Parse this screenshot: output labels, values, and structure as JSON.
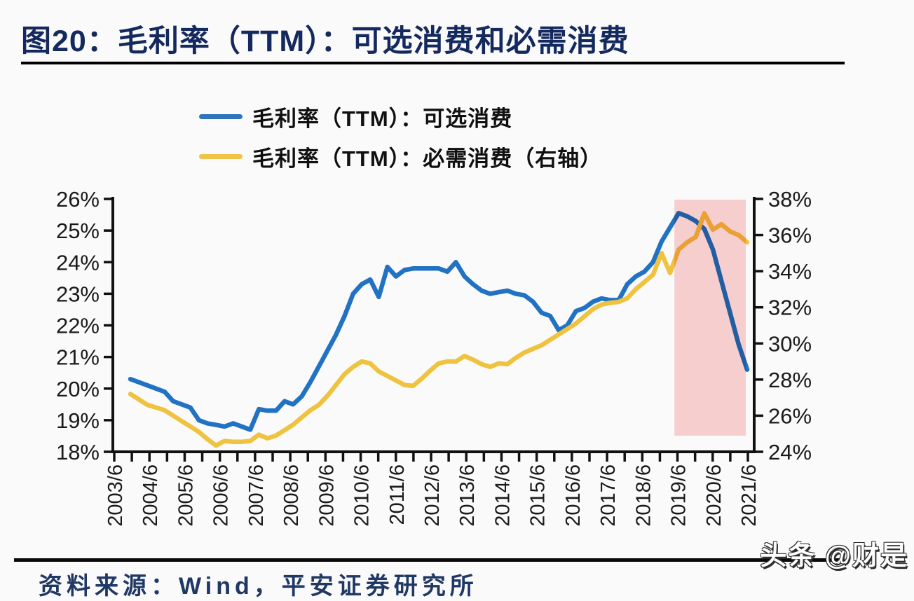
{
  "page": {
    "title": "图20：毛利率（TTM）：可选消费和必需消费",
    "watermark": "头条 @财是",
    "source_note_partial": "资料来源：Wind，平安证券研究所"
  },
  "legend": [
    {
      "label": "毛利率（TTM）：可选消费",
      "color": "#2E75BC"
    },
    {
      "label": "毛利率（TTM）：必需消费（右轴）",
      "color": "#F0C24A"
    }
  ],
  "colors": {
    "title": "#14295E",
    "axis": "#111111",
    "tick_label": "#1a1a1a",
    "blue_line": "#2272C4",
    "yellow_line": "#EFC240",
    "highlight": "#FAD2D2",
    "background": "#FBFAFB"
  },
  "chart_data": {
    "type": "line",
    "title": "毛利率（TTM）：可选消费和必需消费",
    "x_tick_labels": [
      "2003/6",
      "2004/6",
      "2005/6",
      "2006/6",
      "2007/6",
      "2008/6",
      "2009/6",
      "2010/6",
      "2011/6",
      "2012/6",
      "2013/6",
      "2014/6",
      "2015/6",
      "2016/6",
      "2017/6",
      "2018/6",
      "2019/6",
      "2020/6",
      "2021/6"
    ],
    "dates": [
      "2003/6",
      "2003/9",
      "2003/12",
      "2004/3",
      "2004/6",
      "2004/9",
      "2004/12",
      "2005/3",
      "2005/6",
      "2005/9",
      "2005/12",
      "2006/3",
      "2006/6",
      "2006/9",
      "2006/12",
      "2007/3",
      "2007/6",
      "2007/9",
      "2007/12",
      "2008/3",
      "2008/6",
      "2008/9",
      "2008/12",
      "2009/3",
      "2009/6",
      "2009/9",
      "2009/12",
      "2010/3",
      "2010/6",
      "2010/9",
      "2010/12",
      "2011/3",
      "2011/6",
      "2011/9",
      "2011/12",
      "2012/3",
      "2012/6",
      "2012/9",
      "2012/12",
      "2013/3",
      "2013/6",
      "2013/9",
      "2013/12",
      "2014/3",
      "2014/6",
      "2014/9",
      "2014/12",
      "2015/3",
      "2015/6",
      "2015/9",
      "2015/12",
      "2016/3",
      "2016/6",
      "2016/9",
      "2016/12",
      "2017/3",
      "2017/6",
      "2017/9",
      "2017/12",
      "2018/3",
      "2018/6",
      "2018/9",
      "2018/12",
      "2019/3",
      "2019/6",
      "2019/9",
      "2019/12",
      "2020/3",
      "2020/6",
      "2020/9",
      "2020/12",
      "2021/3",
      "2021/6"
    ],
    "series": [
      {
        "name": "毛利率（TTM）：可选消费",
        "axis": "left",
        "color": "#2272C4",
        "values": [
          20.3,
          20.2,
          20.1,
          20.0,
          19.9,
          19.6,
          19.5,
          19.4,
          19.0,
          18.9,
          18.85,
          18.8,
          18.9,
          18.8,
          18.7,
          19.35,
          19.3,
          19.3,
          19.6,
          19.5,
          19.75,
          20.2,
          20.7,
          21.2,
          21.7,
          22.3,
          23.0,
          23.3,
          23.45,
          22.9,
          23.85,
          23.55,
          23.75,
          23.8,
          23.8,
          23.8,
          23.8,
          23.7,
          24.0,
          23.55,
          23.3,
          23.1,
          23.0,
          23.05,
          23.1,
          23.0,
          22.95,
          22.75,
          22.4,
          22.3,
          21.85,
          22.0,
          22.45,
          22.55,
          22.75,
          22.85,
          22.8,
          22.8,
          23.3,
          23.55,
          23.7,
          24.0,
          24.65,
          25.1,
          25.55,
          25.45,
          25.3,
          25.05,
          24.4,
          23.4,
          22.4,
          21.4,
          20.6
        ]
      },
      {
        "name": "毛利率（TTM）：必需消费（右轴）",
        "axis": "right",
        "color": "#EFC240",
        "values": [
          27.2,
          26.9,
          26.6,
          26.45,
          26.3,
          26.0,
          25.7,
          25.4,
          25.1,
          24.7,
          24.35,
          24.6,
          24.55,
          24.55,
          24.6,
          24.95,
          24.75,
          24.9,
          25.2,
          25.5,
          25.9,
          26.3,
          26.6,
          27.1,
          27.7,
          28.3,
          28.7,
          29.0,
          28.9,
          28.45,
          28.2,
          27.95,
          27.7,
          27.65,
          28.05,
          28.5,
          28.9,
          29.0,
          29.0,
          29.3,
          29.1,
          28.85,
          28.7,
          28.9,
          28.85,
          29.2,
          29.5,
          29.7,
          29.9,
          30.2,
          30.5,
          30.8,
          31.1,
          31.5,
          31.9,
          32.15,
          32.25,
          32.3,
          32.5,
          33.0,
          33.4,
          33.8,
          35.0,
          33.9,
          35.2,
          35.6,
          35.9,
          37.2,
          36.3,
          36.6,
          36.2,
          36.0,
          35.6
        ]
      }
    ],
    "left_axis": {
      "min": 18,
      "max": 26,
      "labels": [
        "26%",
        "25%",
        "24%",
        "23%",
        "22%",
        "21%",
        "20%",
        "19%",
        "18%"
      ]
    },
    "right_axis": {
      "min": 24,
      "max": 38,
      "labels": [
        "38%",
        "36%",
        "34%",
        "32%",
        "30%",
        "28%",
        "26%",
        "24%"
      ]
    },
    "grid": false,
    "legend_position": "top",
    "highlight_region": {
      "x_start": "2019/6",
      "x_end": "2021/6",
      "color": "#FAD2D2"
    }
  }
}
